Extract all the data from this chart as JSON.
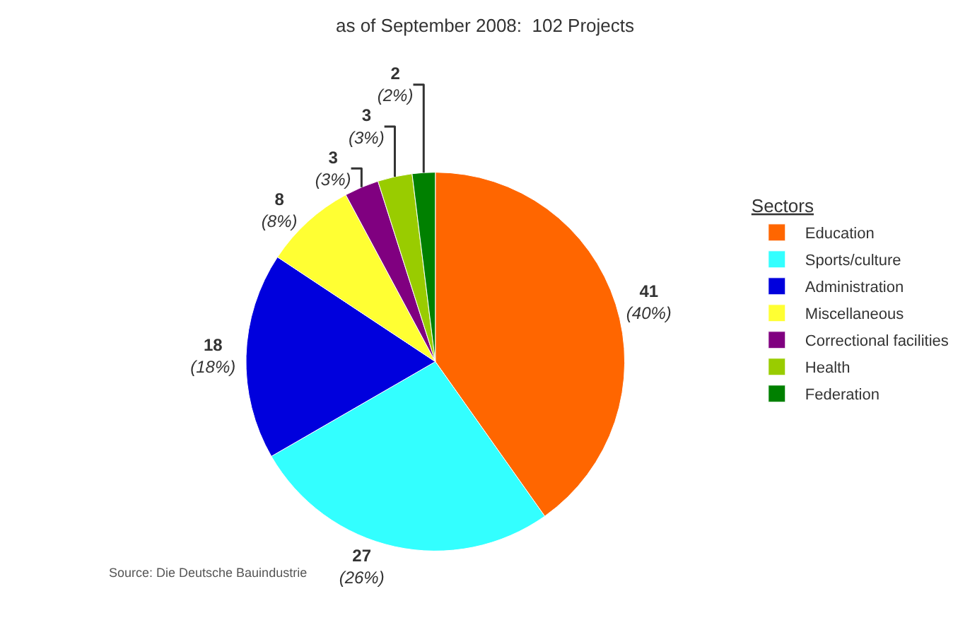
{
  "chart_data": {
    "type": "pie",
    "title": "as of September 2008:  102 Projects",
    "legend_title": "Sectors",
    "legend": "right",
    "categories": [
      "Education",
      "Sports/culture",
      "Administration",
      "Miscellaneous",
      "Correctional facilities",
      "Health",
      "Federation"
    ],
    "values": [
      41,
      27,
      18,
      8,
      3,
      3,
      2
    ],
    "colors": [
      "#ff6600",
      "#33ffff",
      "#0000dd",
      "#ffff33",
      "#800080",
      "#99cc00",
      "#008000"
    ],
    "value_labels": [
      "41\n(40%)",
      "27\n(26%)",
      "18\n(18%)",
      "8\n(8%)",
      "3\n(3%)",
      "3\n(3%)",
      "2\n(2%)"
    ],
    "annotations": [
      "Source: Die Deutsche Bauindustrie"
    ]
  }
}
